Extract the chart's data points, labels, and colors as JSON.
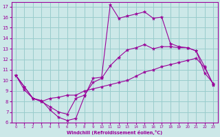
{
  "xlabel": "Windchill (Refroidissement éolien,°C)",
  "bg_color": "#cce8e8",
  "line_color": "#990099",
  "grid_color": "#99cccc",
  "xlim": [
    -0.5,
    23.5
  ],
  "ylim": [
    6,
    17.4
  ],
  "xticks": [
    0,
    1,
    2,
    3,
    4,
    5,
    6,
    7,
    8,
    9,
    10,
    11,
    12,
    13,
    14,
    15,
    16,
    17,
    18,
    19,
    20,
    21,
    22,
    23
  ],
  "yticks": [
    6,
    7,
    8,
    9,
    10,
    11,
    12,
    13,
    14,
    15,
    16,
    17
  ],
  "curve1_x": [
    0,
    1,
    2,
    3,
    4,
    5,
    6,
    7,
    8,
    9,
    10,
    11,
    12,
    13,
    14,
    15,
    16,
    17,
    18,
    19,
    20,
    21,
    22,
    23
  ],
  "curve1_y": [
    10.5,
    9.4,
    8.3,
    8.1,
    7.2,
    6.5,
    6.2,
    6.4,
    8.5,
    10.2,
    10.3,
    17.2,
    15.9,
    16.1,
    16.3,
    16.5,
    15.9,
    16.0,
    13.5,
    13.2,
    13.1,
    12.8,
    10.7,
    9.7
  ],
  "curve2_x": [
    0,
    1,
    2,
    3,
    4,
    5,
    6,
    7,
    8,
    9,
    10,
    11,
    12,
    13,
    14,
    15,
    16,
    17,
    18,
    19,
    20,
    21,
    22,
    23
  ],
  "curve2_y": [
    10.5,
    9.4,
    8.3,
    8.0,
    7.5,
    7.0,
    6.8,
    8.3,
    8.6,
    9.8,
    10.2,
    11.4,
    12.2,
    12.9,
    13.1,
    13.4,
    13.0,
    13.2,
    13.2,
    13.1,
    13.1,
    12.8,
    11.3,
    9.6
  ],
  "curve3_x": [
    0,
    1,
    2,
    3,
    4,
    5,
    6,
    7,
    8,
    9,
    10,
    11,
    12,
    13,
    14,
    15,
    16,
    17,
    18,
    19,
    20,
    21,
    22,
    23
  ],
  "curve3_y": [
    10.5,
    9.1,
    8.3,
    8.0,
    8.3,
    8.4,
    8.6,
    8.6,
    9.0,
    9.2,
    9.4,
    9.6,
    9.8,
    10.0,
    10.4,
    10.8,
    11.0,
    11.3,
    11.5,
    11.7,
    11.9,
    12.1,
    11.2,
    9.6
  ]
}
